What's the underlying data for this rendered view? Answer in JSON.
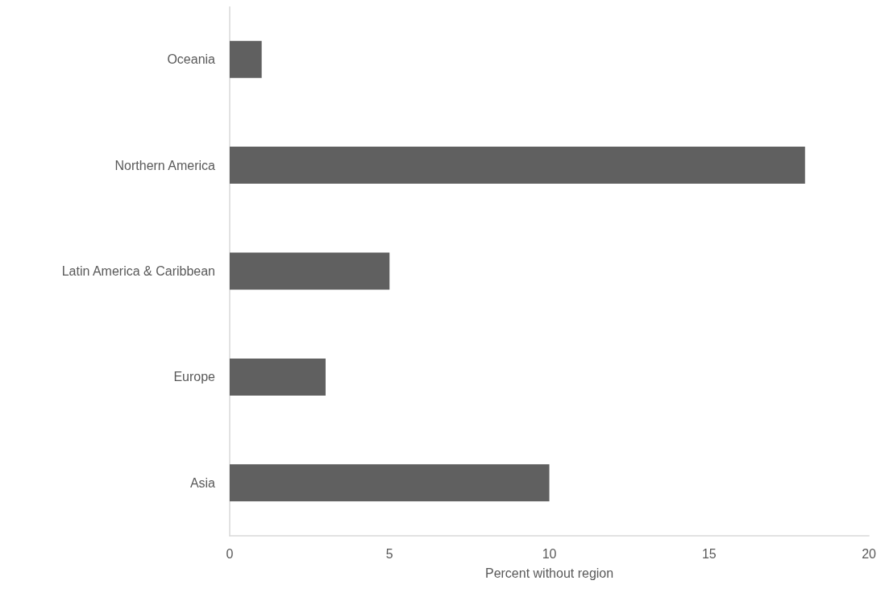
{
  "chart_data": {
    "type": "bar",
    "orientation": "horizontal",
    "xlabel": "Percent without region",
    "categories": [
      "Oceania",
      "Northern America",
      "Latin America & Caribbean",
      "Europe",
      "Asia"
    ],
    "values": [
      1,
      18,
      5,
      3,
      10
    ],
    "color": "#606060",
    "xlim": [
      0,
      20
    ],
    "xticks": [
      0,
      5,
      10,
      15,
      20
    ],
    "grid": false
  }
}
